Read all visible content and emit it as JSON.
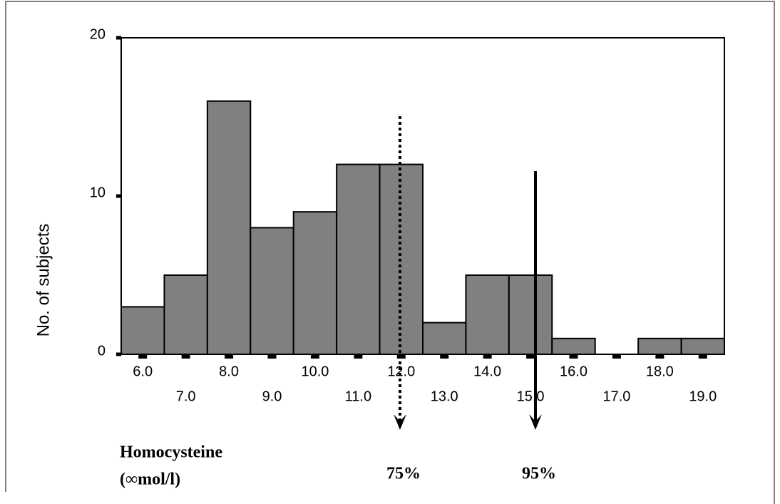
{
  "chart_data": {
    "type": "bar",
    "y_label": "No. of subjects",
    "x_label": [
      "Homocysteine",
      "(∞mol/l)"
    ],
    "categories": [
      "6.0",
      "7.0",
      "8.0",
      "9.0",
      "10.0",
      "11.0",
      "12.0",
      "13.0",
      "14.0",
      "15.0",
      "16.0",
      "17.0",
      "18.0",
      "19.0"
    ],
    "values": [
      3,
      5,
      16,
      8,
      9,
      12,
      12,
      2,
      5,
      5,
      1,
      0,
      1,
      1
    ],
    "color": "#808080",
    "ylim": [
      0,
      20
    ],
    "yticks": [
      0,
      10,
      20
    ],
    "annotations": [
      {
        "label": "75%",
        "style": "dotted"
      },
      {
        "label": "95%",
        "style": "solid"
      }
    ]
  }
}
